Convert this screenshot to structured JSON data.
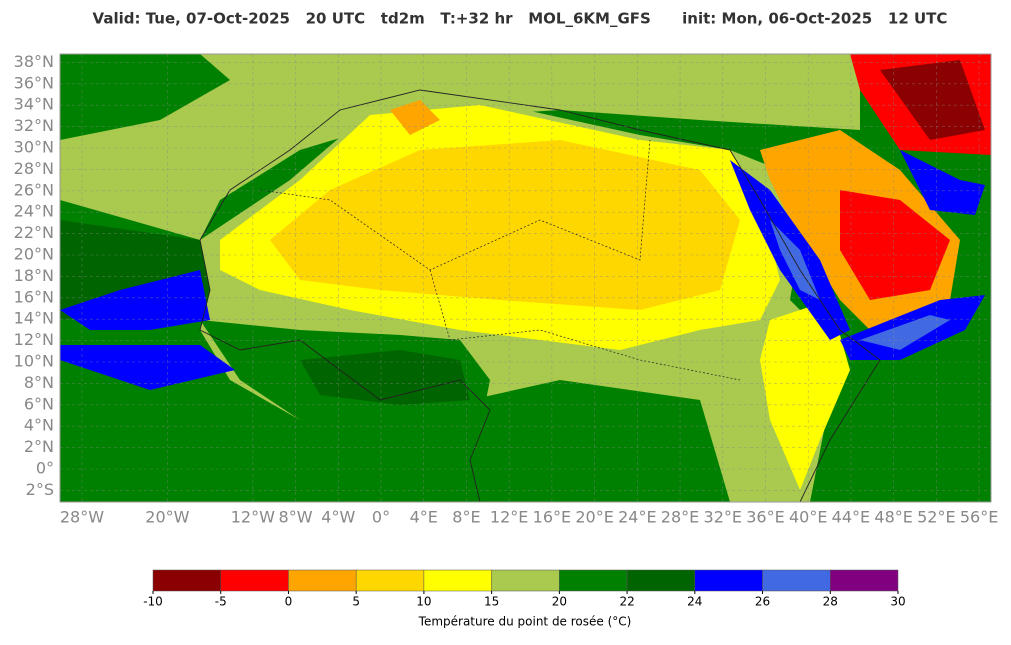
{
  "header": {
    "title": "Valid: Tue, 07-Oct-2025   20 UTC   td2m   T:+32 hr   MOL_6KM_GFS      init: Mon, 06-Oct-2025   12 UTC"
  },
  "map": {
    "lat_ticks": [
      {
        "value": 38,
        "label": "38°N"
      },
      {
        "value": 36,
        "label": "36°N"
      },
      {
        "value": 34,
        "label": "34°N"
      },
      {
        "value": 32,
        "label": "32°N"
      },
      {
        "value": 30,
        "label": "30°N"
      },
      {
        "value": 28,
        "label": "28°N"
      },
      {
        "value": 26,
        "label": "26°N"
      },
      {
        "value": 24,
        "label": "24°N"
      },
      {
        "value": 22,
        "label": "22°N"
      },
      {
        "value": 20,
        "label": "20°N"
      },
      {
        "value": 18,
        "label": "18°N"
      },
      {
        "value": 16,
        "label": "16°N"
      },
      {
        "value": 14,
        "label": "14°N"
      },
      {
        "value": 12,
        "label": "12°N"
      },
      {
        "value": 10,
        "label": "10°N"
      },
      {
        "value": 8,
        "label": "8°N"
      },
      {
        "value": 6,
        "label": "6°N"
      },
      {
        "value": 4,
        "label": "4°N"
      },
      {
        "value": 2,
        "label": "2°N"
      },
      {
        "value": 0,
        "label": "0°"
      },
      {
        "value": -2,
        "label": "2°S"
      }
    ],
    "lon_ticks": [
      {
        "value": -28,
        "label": "28°W"
      },
      {
        "value": -20,
        "label": "20°W"
      },
      {
        "value": -12,
        "label": "12°W"
      },
      {
        "value": -8,
        "label": "8°W"
      },
      {
        "value": -4,
        "label": "4°W"
      },
      {
        "value": 0,
        "label": "0°"
      },
      {
        "value": 4,
        "label": "4°E"
      },
      {
        "value": 8,
        "label": "8°E"
      },
      {
        "value": 12,
        "label": "12°E"
      },
      {
        "value": 16,
        "label": "16°E"
      },
      {
        "value": 20,
        "label": "20°E"
      },
      {
        "value": 24,
        "label": "24°E"
      },
      {
        "value": 28,
        "label": "28°E"
      },
      {
        "value": 32,
        "label": "32°E"
      },
      {
        "value": 36,
        "label": "36°E"
      },
      {
        "value": 40,
        "label": "40°E"
      },
      {
        "value": 44,
        "label": "44°E"
      },
      {
        "value": 48,
        "label": "48°E"
      },
      {
        "value": 52,
        "label": "52°E"
      },
      {
        "value": 56,
        "label": "56°E"
      }
    ]
  },
  "colorbar": {
    "ticks": [
      -10,
      -5,
      0,
      5,
      10,
      15,
      20,
      22,
      24,
      26,
      28,
      30
    ],
    "colors": [
      "#8b0000",
      "#ff0000",
      "#ffa500",
      "#ffd700",
      "#ffff00",
      "#a9c94f",
      "#008000",
      "#006400",
      "#0000ff",
      "#4169e1",
      "#800080"
    ],
    "label": "Température du point de rosée (°C)"
  }
}
